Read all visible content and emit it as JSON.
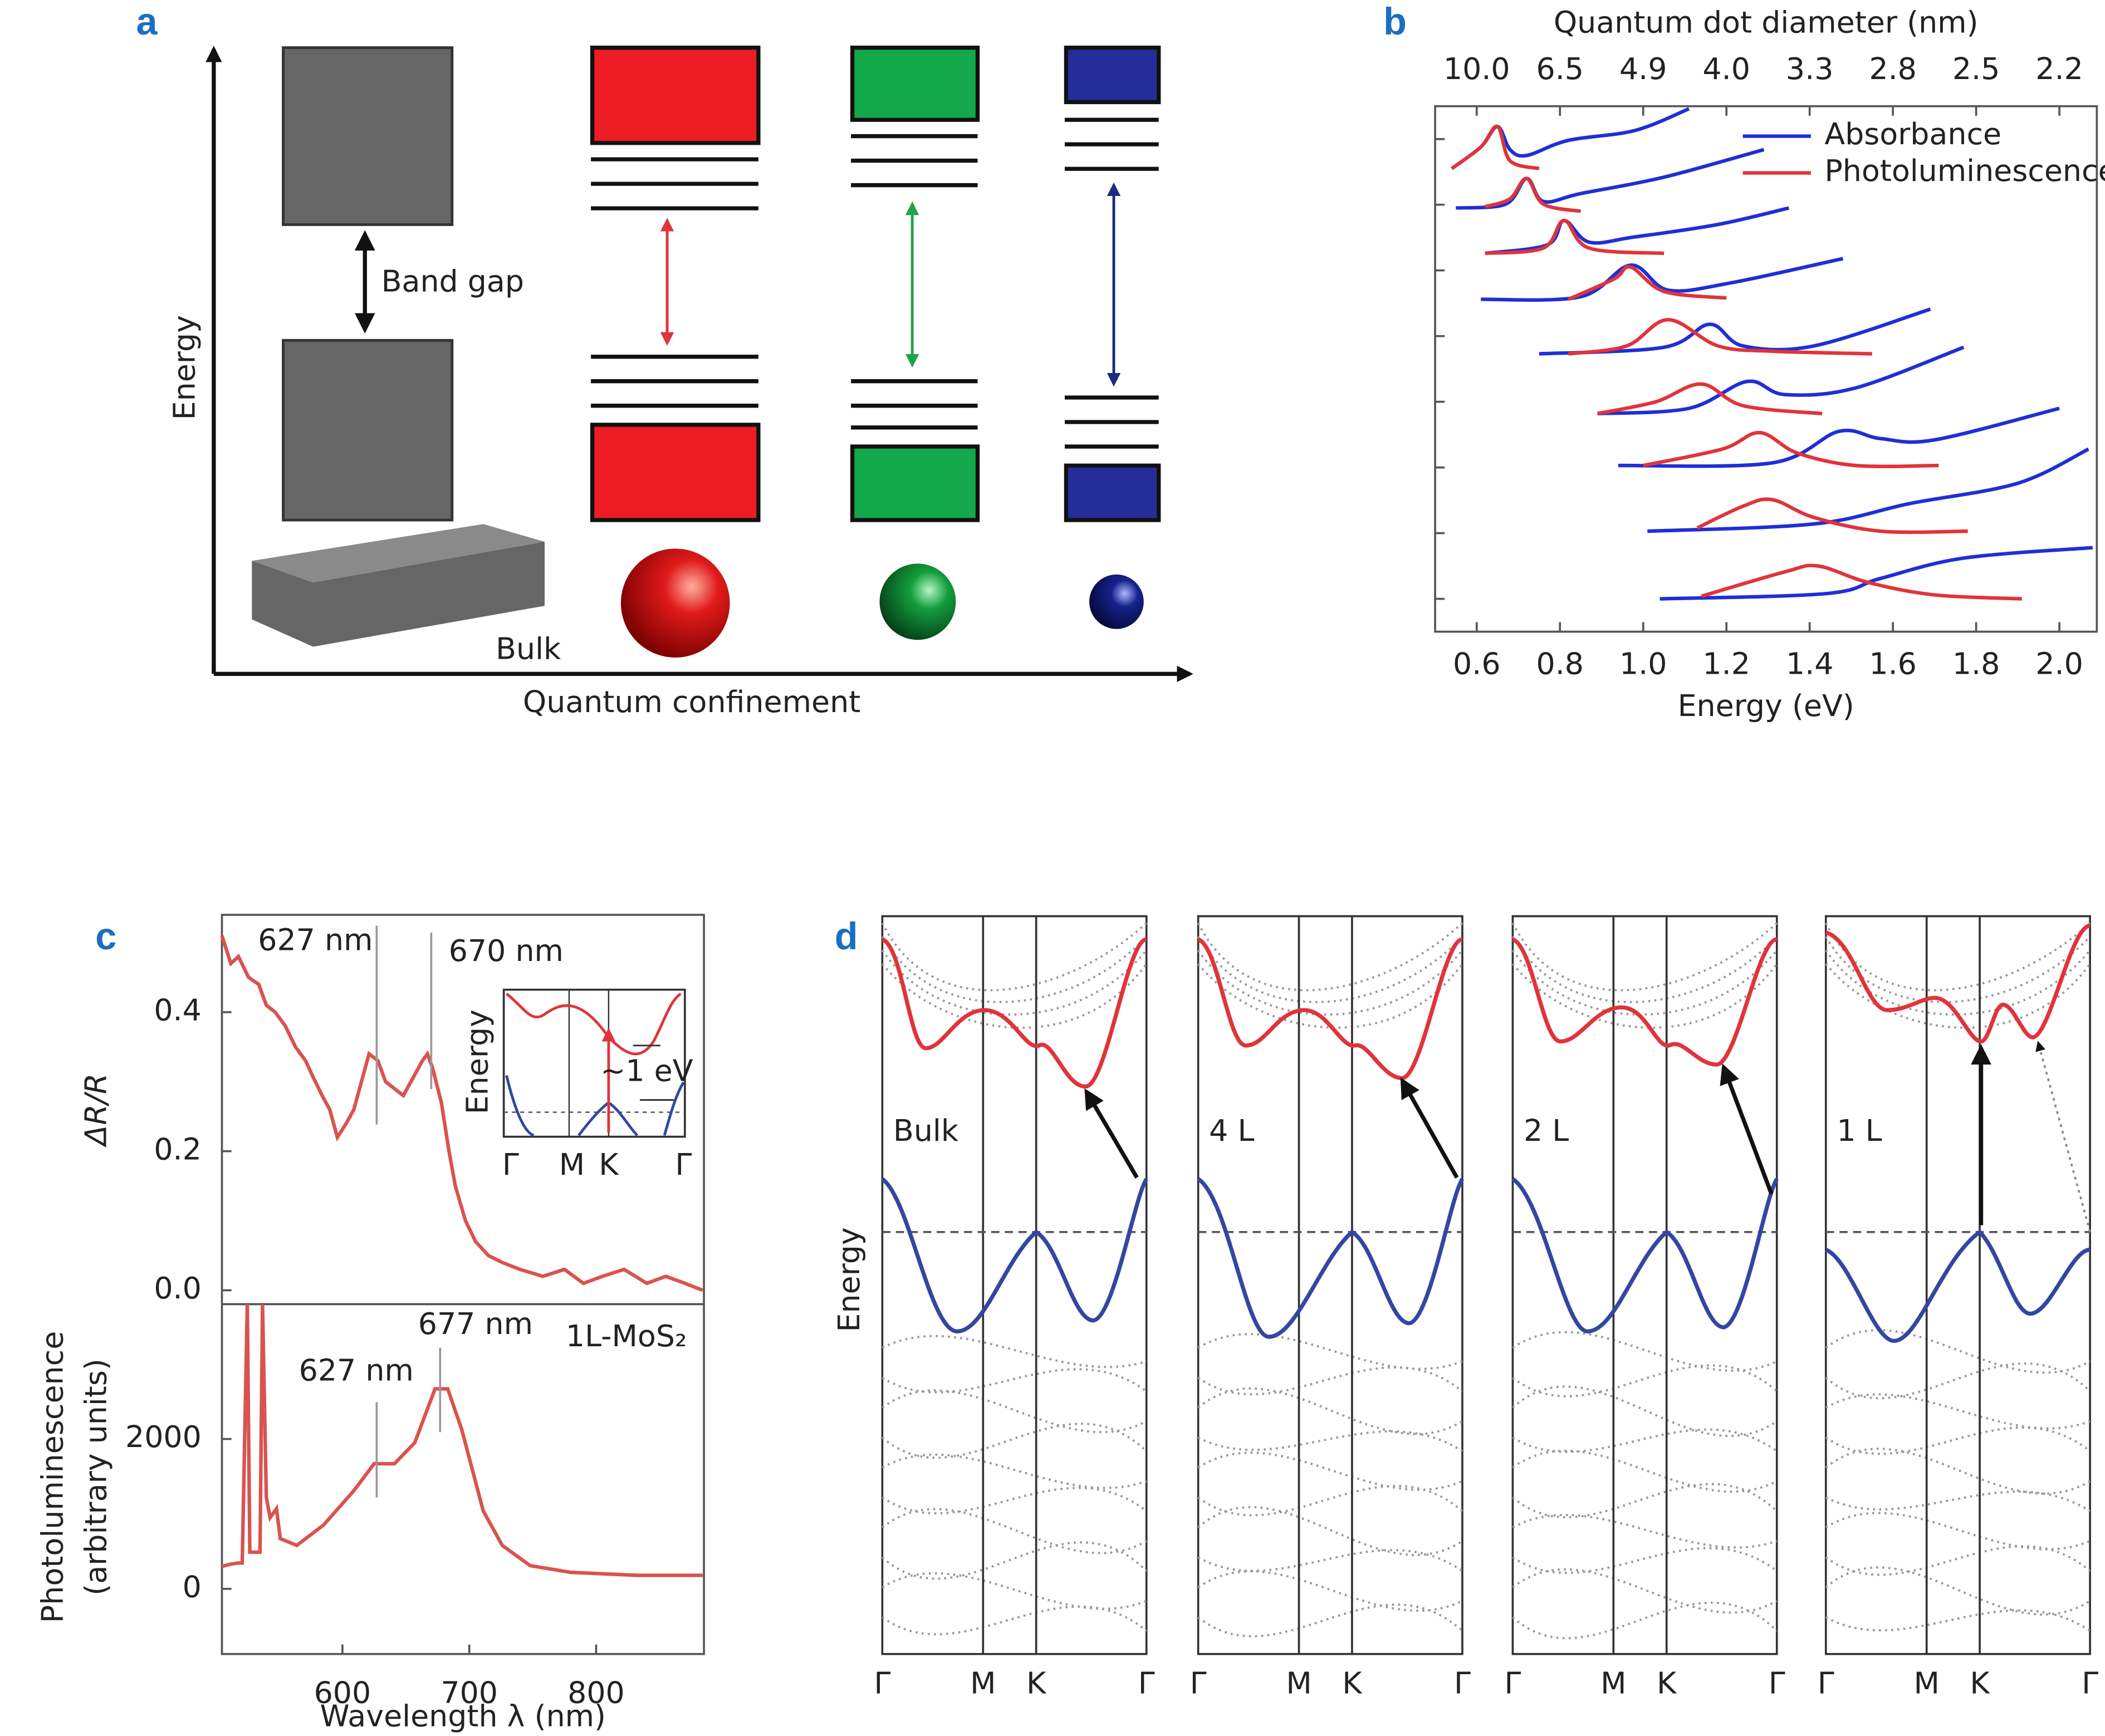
{
  "panel_a": {
    "label": "a",
    "y_label": "Energy",
    "x_label": "Quantum confinement",
    "gap_label": "Band gap",
    "bulk_label": "Bulk"
  },
  "chart_data": [
    {
      "type": "line",
      "label": "b",
      "x_label": "Energy (eV)",
      "x2_label": "Quantum dot diameter (nm)",
      "xlim": [
        0.5,
        2.09
      ],
      "xticks": [
        0.6,
        0.8,
        {
          "value": 1,
          "label": "1.0"
        },
        1.2,
        1.4,
        1.6,
        1.8,
        {
          "value": 2,
          "label": "2.0"
        }
      ],
      "x2ticks": [
        {
          "value": 10,
          "label": "10.0",
          "energy": 0.6
        },
        {
          "value": 6.5,
          "label": "6.5",
          "energy": 0.8
        },
        {
          "value": 4.9,
          "label": "4.9",
          "energy": 1.0
        },
        {
          "value": 4,
          "label": "4.0",
          "energy": 1.2
        },
        {
          "value": 3.3,
          "label": "3.3",
          "energy": 1.4
        },
        {
          "value": 2.8,
          "label": "2.8",
          "energy": 1.6
        },
        {
          "value": 2.5,
          "label": "2.5",
          "energy": 1.8
        },
        {
          "value": 2.2,
          "label": "2.2",
          "energy": 2.0
        }
      ],
      "ylim": [
        0,
        8
      ],
      "yticks": [
        0.5,
        1.5,
        2.5,
        3.5,
        4.5,
        5.5,
        6.5,
        7.5
      ],
      "legend": "upper right",
      "series": [
        {
          "name": "Absorbance",
          "color": "#1f2fd6",
          "x": [
            0.54,
            0.61,
            0.65,
            0.68,
            0.72,
            0.82,
            0.98,
            1.11,
            null,
            0.55,
            0.67,
            0.72,
            0.76,
            0.85,
            1.05,
            1.29,
            null,
            0.62,
            0.77,
            0.81,
            0.87,
            0.98,
            1.18,
            1.35,
            null,
            0.61,
            0.85,
            0.97,
            1.06,
            1.21,
            1.48,
            null,
            0.75,
            1.05,
            1.16,
            1.24,
            1.41,
            1.69,
            null,
            0.89,
            1.11,
            1.25,
            1.34,
            1.51,
            1.77,
            null,
            0.94,
            1.31,
            1.47,
            1.57,
            1.7,
            2.0,
            null,
            1.01,
            1.41,
            1.64,
            1.9,
            2.07,
            null,
            1.04,
            1.44,
            1.57,
            1.77,
            2.08
          ],
          "values": [
            7.05,
            7.38,
            7.69,
            7.34,
            7.25,
            7.48,
            7.63,
            7.96,
            null,
            6.45,
            6.51,
            6.9,
            6.55,
            6.67,
            6.92,
            7.34,
            null,
            5.76,
            5.89,
            6.26,
            5.93,
            6.01,
            6.2,
            6.45,
            null,
            5.06,
            5.1,
            5.58,
            5.2,
            5.31,
            5.68,
            null,
            4.23,
            4.33,
            4.68,
            4.35,
            4.35,
            4.91,
            null,
            3.32,
            3.4,
            3.81,
            3.61,
            3.71,
            4.33,
            null,
            2.53,
            2.57,
            3.05,
            2.94,
            2.92,
            3.4,
            null,
            1.53,
            1.64,
            1.95,
            2.26,
            2.78,
            null,
            0.5,
            0.58,
            0.81,
            1.12,
            1.28
          ]
        },
        {
          "name": "Photoluminescence",
          "color": "#e0343a",
          "x": [
            0.54,
            0.61,
            0.65,
            0.68,
            0.75,
            null,
            0.62,
            0.68,
            0.72,
            0.76,
            0.85,
            null,
            0.62,
            0.76,
            0.81,
            0.87,
            1.05,
            null,
            0.82,
            0.93,
            0.97,
            1.05,
            1.2,
            null,
            0.82,
            0.96,
            1.06,
            1.18,
            1.31,
            1.55,
            null,
            0.89,
            1.03,
            1.14,
            1.24,
            1.43,
            null,
            1.0,
            1.19,
            1.28,
            1.37,
            1.51,
            1.71,
            null,
            1.13,
            1.24,
            1.31,
            1.41,
            1.57,
            1.78,
            null,
            1.14,
            1.34,
            1.42,
            1.54,
            1.7,
            1.91
          ],
          "values": [
            7.05,
            7.38,
            7.69,
            7.17,
            7.05,
            null,
            6.47,
            6.59,
            6.9,
            6.51,
            6.4,
            null,
            5.76,
            5.84,
            6.26,
            5.84,
            5.76,
            null,
            5.06,
            5.37,
            5.55,
            5.18,
            5.08,
            null,
            4.23,
            4.35,
            4.75,
            4.35,
            4.27,
            4.23,
            null,
            3.32,
            3.5,
            3.77,
            3.44,
            3.32,
            null,
            2.53,
            2.78,
            3.03,
            2.72,
            2.53,
            2.53,
            null,
            1.58,
            1.91,
            2.01,
            1.74,
            1.53,
            1.53,
            null,
            0.54,
            0.91,
            1.0,
            0.75,
            0.56,
            0.5
          ]
        }
      ]
    },
    {
      "type": "line",
      "label": "c",
      "y_label": "ΔR/R",
      "xlim": [
        505,
        885
      ],
      "ylim": [
        -0.02,
        0.54
      ],
      "yticks": [
        {
          "value": 0,
          "label": "0.0"
        },
        0.2,
        0.4
      ],
      "annotations": [
        {
          "text": "627 nm",
          "x": 627
        },
        {
          "text": "670 nm",
          "x": 670
        }
      ],
      "series": [
        {
          "color": "#d9534f",
          "x": [
            505,
            512,
            518,
            526,
            534,
            540,
            547,
            555,
            563,
            571,
            576,
            584,
            590,
            596,
            603,
            609,
            615,
            621,
            628,
            634,
            641,
            648,
            657,
            663,
            667,
            671,
            678,
            684,
            689,
            697,
            705,
            715,
            726,
            740,
            758,
            775,
            790,
            805,
            822,
            840,
            855,
            870,
            884
          ],
          "values": [
            0.51,
            0.47,
            0.48,
            0.45,
            0.44,
            0.41,
            0.4,
            0.38,
            0.35,
            0.33,
            0.31,
            0.28,
            0.26,
            0.22,
            0.24,
            0.26,
            0.3,
            0.34,
            0.33,
            0.3,
            0.29,
            0.28,
            0.31,
            0.33,
            0.34,
            0.32,
            0.27,
            0.2,
            0.15,
            0.1,
            0.07,
            0.05,
            0.04,
            0.03,
            0.02,
            0.03,
            0.01,
            0.02,
            0.03,
            0.01,
            0.02,
            0.01,
            0.0
          ]
        }
      ],
      "inset": {
        "y_label": "Energy",
        "k_points": [
          "Γ",
          "M",
          "K",
          "Γ"
        ],
        "annotation": "~1 eV"
      }
    },
    {
      "type": "line",
      "x_label": "Wavelength λ (nm)",
      "y_label": [
        "Photoluminescence",
        "(arbitrary units)"
      ],
      "sample_label": "1L-MoS₂",
      "xlim": [
        505,
        885
      ],
      "xticks": [
        600,
        700,
        800
      ],
      "ylim": [
        -870,
        3800
      ],
      "yticks": [
        0,
        2000
      ],
      "annotations": [
        {
          "text": "627 nm",
          "x": 627
        },
        {
          "text": "677 nm",
          "x": 677
        }
      ],
      "series": [
        {
          "color": "#d9534f",
          "x": [
            505,
            512,
            518,
            521,
            525,
            527,
            535,
            537,
            540,
            543,
            548,
            551,
            564,
            585,
            609,
            625,
            641,
            657,
            673,
            683,
            694,
            711,
            726,
            748,
            780,
            833,
            884
          ],
          "values": [
            300,
            330,
            345,
            345,
            3800,
            490,
            490,
            3800,
            1220,
            950,
            1070,
            670,
            580,
            850,
            1310,
            1670,
            1670,
            1950,
            2670,
            2670,
            2130,
            1040,
            580,
            310,
            220,
            180,
            180
          ]
        }
      ]
    }
  ],
  "panel_d": {
    "label": "d",
    "y_label": "Energy",
    "panels": [
      {
        "label": "Bulk",
        "k_points": [
          "Γ",
          "M",
          "K",
          "Γ"
        ]
      },
      {
        "label": "4 L",
        "k_points": [
          "Γ",
          "M",
          "K",
          "Γ"
        ]
      },
      {
        "label": "2 L",
        "k_points": [
          "Γ",
          "M",
          "K",
          "Γ"
        ]
      },
      {
        "label": "1 L",
        "k_points": [
          "Γ",
          "M",
          "K",
          "Γ"
        ]
      }
    ]
  }
}
